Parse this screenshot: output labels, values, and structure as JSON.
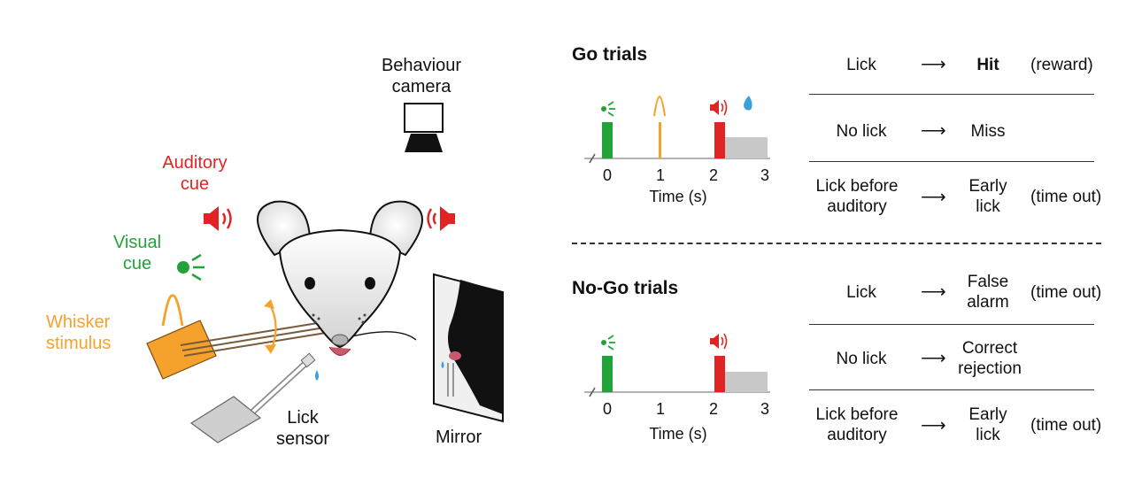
{
  "setup": {
    "behaviour_camera": [
      "Behaviour",
      "camera"
    ],
    "auditory_cue": [
      "Auditory",
      "cue"
    ],
    "visual_cue": [
      "Visual",
      "cue"
    ],
    "whisker_stimulus": [
      "Whisker",
      "stimulus"
    ],
    "lick_sensor": [
      "Lick",
      "sensor"
    ],
    "mirror": "Mirror"
  },
  "colors": {
    "visual": "#22a33a",
    "whisker": "#f5a22c",
    "auditory": "#e02424",
    "reward_drop": "#3aa0d8",
    "timeout_bar": "#c8c8c8"
  },
  "go_trials": {
    "title": "Go trials",
    "timeline": {
      "xlabel": "Time (s)",
      "ticks": [
        "0",
        "1",
        "2",
        "3"
      ]
    },
    "outcomes": [
      {
        "action": [
          "Lick"
        ],
        "result": [
          "Hit"
        ],
        "note": "(reward)"
      },
      {
        "action": [
          "No lick"
        ],
        "result": [
          "Miss"
        ],
        "note": ""
      },
      {
        "action": [
          "Lick before",
          "auditory"
        ],
        "result": [
          "Early",
          "lick"
        ],
        "note": "(time out)"
      }
    ]
  },
  "nogo_trials": {
    "title": "No-Go trials",
    "timeline": {
      "xlabel": "Time (s)",
      "ticks": [
        "0",
        "1",
        "2",
        "3"
      ]
    },
    "outcomes": [
      {
        "action": [
          "Lick"
        ],
        "result": [
          "False",
          "alarm"
        ],
        "note": "(time out)"
      },
      {
        "action": [
          "No lick"
        ],
        "result": [
          "Correct",
          "rejection"
        ],
        "note": ""
      },
      {
        "action": [
          "Lick before",
          "auditory"
        ],
        "result": [
          "Early",
          "lick"
        ],
        "note": "(time out)"
      }
    ]
  }
}
